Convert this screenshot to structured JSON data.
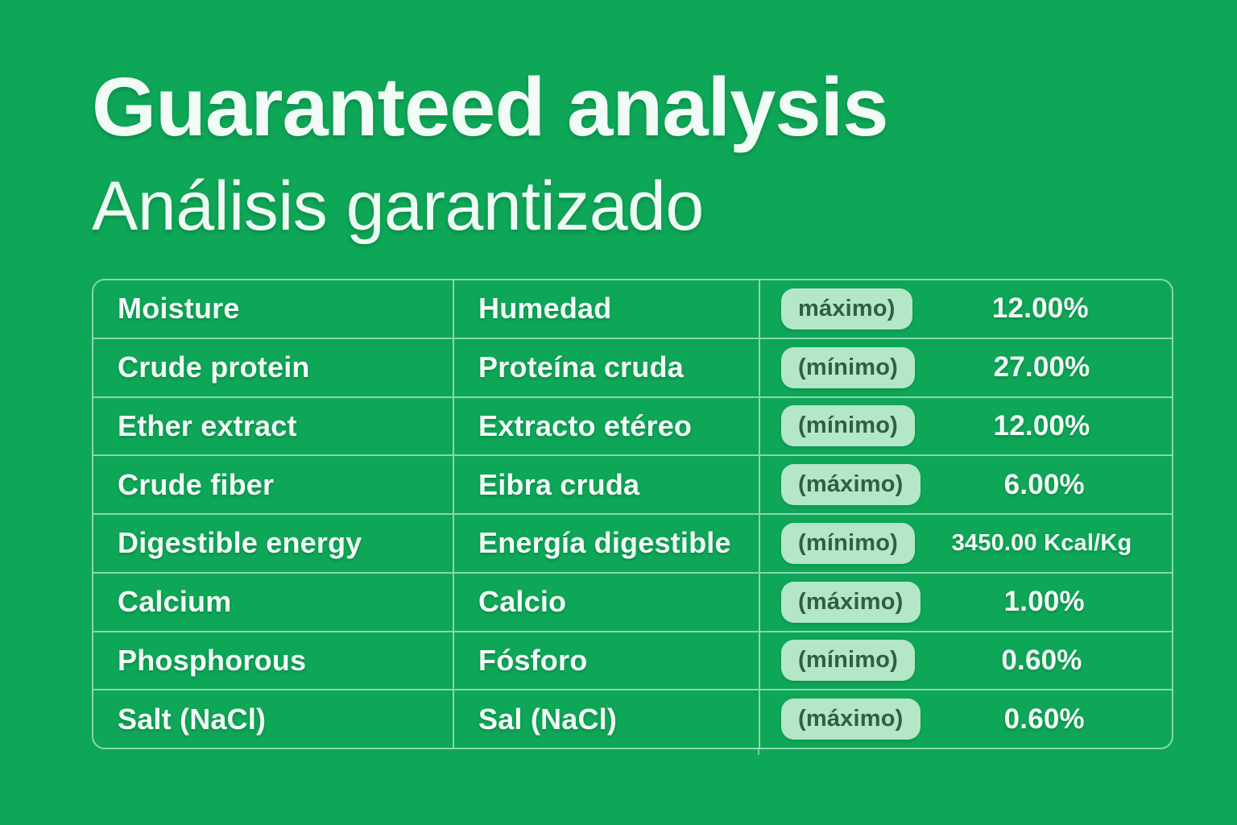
{
  "page": {
    "title": "Guaranteed analysis",
    "subtitle": "Análisis garantizado"
  },
  "colors": {
    "background_green": "#0ea657",
    "text_light": "#f3fcf7",
    "badge_background": "#b4e6c8",
    "badge_text": "#2f5f46",
    "table_border": "#f3fcf7"
  },
  "table": {
    "rows": [
      {
        "en": "Moisture",
        "es": "Humedad",
        "qualifier": "máximo)",
        "value": "12.00%"
      },
      {
        "en": "Crude protein",
        "es": "Proteína cruda",
        "qualifier": "(mínimo)",
        "value": "27.00%"
      },
      {
        "en": "Ether extract",
        "es": "Extracto etéreo",
        "qualifier": "(mínimo)",
        "value": "12.00%"
      },
      {
        "en": "Crude fiber",
        "es": "Eibra cruda",
        "qualifier": "(máximo)",
        "value": "6.00%"
      },
      {
        "en": "Digestible energy",
        "es": "Energía digestible",
        "qualifier": "(mínimo)",
        "value": "3450.00 Kcal/Kg"
      },
      {
        "en": "Calcium",
        "es": "Calcio",
        "qualifier": "(máximo)",
        "value": "1.00%"
      },
      {
        "en": "Phosphorous",
        "es": "Fósforo",
        "qualifier": "(mínimo)",
        "value": "0.60%"
      },
      {
        "en": "Salt (NaCl)",
        "es": "Sal (NaCl)",
        "qualifier": "(máximo)",
        "value": "0.60%"
      }
    ]
  }
}
